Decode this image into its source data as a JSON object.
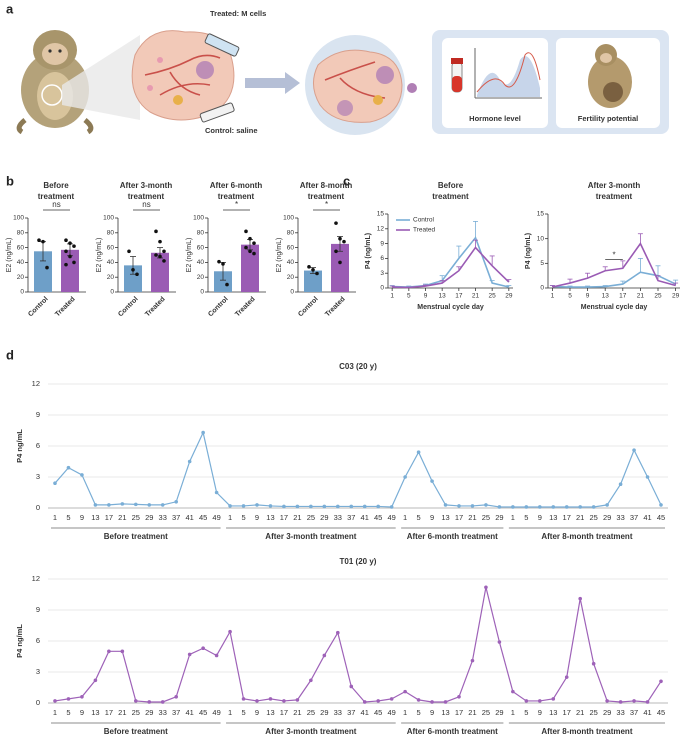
{
  "panel_labels": [
    "a",
    "b",
    "c",
    "d"
  ],
  "illustration": {
    "treated_label": "Treated: M cells",
    "control_label": "Control: saline",
    "hormone_label": "Hormone level",
    "fertility_label": "Fertility potential"
  },
  "chart_data": [
    {
      "type": "bar",
      "title": [
        "Before",
        "treatment"
      ],
      "ylabel": "E2 (ng/mL)",
      "categories": [
        "Control",
        "Treated"
      ],
      "values": [
        55,
        57
      ],
      "errors": [
        13,
        8
      ],
      "points": [
        [
          70,
          68,
          33
        ],
        [
          70,
          66,
          62,
          55,
          48,
          40,
          37
        ]
      ],
      "colors": [
        "#6e9fc8",
        "#9a5bb4"
      ],
      "ylim": [
        0,
        100
      ],
      "yticks": [
        0,
        20,
        40,
        60,
        80,
        100
      ],
      "significance": "ns"
    },
    {
      "type": "bar",
      "title": [
        "After 3-month",
        "treatment"
      ],
      "ylabel": "E2 (ng/mL)",
      "categories": [
        "Control",
        "Treated"
      ],
      "values": [
        36,
        53
      ],
      "errors": [
        12,
        7
      ],
      "points": [
        [
          55,
          30,
          24
        ],
        [
          82,
          68,
          55,
          50,
          48,
          42
        ]
      ],
      "colors": [
        "#6e9fc8",
        "#9a5bb4"
      ],
      "ylim": [
        0,
        100
      ],
      "yticks": [
        0,
        20,
        40,
        60,
        80,
        100
      ],
      "significance": "ns"
    },
    {
      "type": "bar",
      "title": [
        "After 6-month",
        "treatment"
      ],
      "ylabel": "E2 (ng/mL)",
      "categories": [
        "Control",
        "Treated"
      ],
      "values": [
        28,
        64
      ],
      "errors": [
        12,
        7
      ],
      "points": [
        [
          41,
          38,
          10
        ],
        [
          82,
          72,
          66,
          60,
          55,
          52
        ]
      ],
      "colors": [
        "#6e9fc8",
        "#9a5bb4"
      ],
      "ylim": [
        0,
        100
      ],
      "yticks": [
        0,
        20,
        40,
        60,
        80,
        100
      ],
      "significance": "*"
    },
    {
      "type": "bar",
      "title": [
        "After 8-month",
        "treatment"
      ],
      "ylabel": "E2 (ng/mL)",
      "categories": [
        "Control",
        "Treated"
      ],
      "values": [
        29,
        65
      ],
      "errors": [
        4,
        10
      ],
      "points": [
        [
          34,
          30,
          25
        ],
        [
          93,
          72,
          68,
          55,
          40
        ]
      ],
      "colors": [
        "#6e9fc8",
        "#9a5bb4"
      ],
      "ylim": [
        0,
        100
      ],
      "yticks": [
        0,
        20,
        40,
        60,
        80,
        100
      ],
      "significance": "*"
    },
    {
      "type": "line",
      "title": [
        "Before",
        "treatment"
      ],
      "xlabel": "Menstrual cycle day",
      "ylabel": "P4 (ng/mL)",
      "x": [
        1,
        5,
        9,
        13,
        17,
        21,
        25,
        29
      ],
      "xlim": [
        0,
        30
      ],
      "xticks": [
        1,
        5,
        9,
        13,
        17,
        21,
        25,
        29
      ],
      "ylim": [
        0,
        15
      ],
      "yticks": [
        0,
        3,
        6,
        9,
        12,
        15
      ],
      "legend": "upper left",
      "series": [
        {
          "name": "Control",
          "color": "#7aaed6",
          "values": [
            0.3,
            0.2,
            0.5,
            1.5,
            6,
            10.2,
            1,
            0.2
          ],
          "errors": [
            0.2,
            0.2,
            0.3,
            1,
            2.5,
            3.3,
            0.5,
            0.3
          ]
        },
        {
          "name": "Treated",
          "color": "#9a5bb4",
          "values": [
            0.2,
            0.1,
            0.4,
            1,
            3.5,
            8.2,
            4.5,
            1.2
          ],
          "errors": [
            0.2,
            0.1,
            0.2,
            0.5,
            0.8,
            1.5,
            2,
            0.5
          ]
        }
      ]
    },
    {
      "type": "line",
      "title": [
        "After 3-month",
        "treatment"
      ],
      "xlabel": "Menstrual cycle day",
      "ylabel": "P4 (ng/mL)",
      "x": [
        1,
        5,
        9,
        13,
        17,
        21,
        25,
        29
      ],
      "xlim": [
        0,
        30
      ],
      "xticks": [
        1,
        5,
        9,
        13,
        17,
        21,
        25,
        29
      ],
      "ylim": [
        0,
        15
      ],
      "yticks": [
        0,
        5,
        10,
        15
      ],
      "series": [
        {
          "name": "Control",
          "color": "#7aaed6",
          "values": [
            0.3,
            0.2,
            0.2,
            0.3,
            0.8,
            3.2,
            2.5,
            0.8
          ],
          "errors": [
            0.2,
            0.2,
            0.2,
            0.2,
            0.6,
            2.8,
            2,
            0.8
          ]
        },
        {
          "name": "Treated",
          "color": "#9a5bb4",
          "values": [
            0.2,
            1,
            2,
            3.5,
            4,
            9,
            1.5,
            0.5
          ],
          "errors": [
            0.3,
            0.8,
            1,
            0.8,
            1.5,
            2,
            1,
            0.5
          ]
        }
      ],
      "annotations": [
        {
          "text": "*",
          "x": [
            13,
            17
          ],
          "y": 5.8
        }
      ]
    },
    {
      "type": "segmented_line",
      "title": "C03 (20 y)",
      "ylabel": "P4 ng/mL",
      "color": "#7aaed6",
      "ylim": [
        0,
        12
      ],
      "yticks": [
        0,
        3,
        6,
        9,
        12
      ],
      "grid": true,
      "segments": [
        {
          "label": "Before treatment",
          "x": [
            1,
            5,
            9,
            13,
            17,
            21,
            25,
            29,
            33,
            37,
            41,
            45,
            49
          ],
          "values": [
            2.4,
            3.9,
            3.2,
            0.3,
            0.3,
            0.4,
            0.35,
            0.3,
            0.3,
            0.6,
            4.5,
            7.3,
            1.5
          ]
        },
        {
          "label": "After 3-month treatment",
          "x": [
            1,
            5,
            9,
            13,
            17,
            21,
            25,
            29,
            33,
            37,
            41,
            45,
            49
          ],
          "values": [
            0.2,
            0.2,
            0.3,
            0.2,
            0.15,
            0.15,
            0.15,
            0.15,
            0.15,
            0.15,
            0.15,
            0.15,
            0.1
          ]
        },
        {
          "label": "After 6-month treatment",
          "x": [
            1,
            5,
            9,
            13,
            17,
            21,
            25,
            29
          ],
          "values": [
            3,
            5.4,
            2.6,
            0.3,
            0.2,
            0.2,
            0.3,
            0.1
          ]
        },
        {
          "label": "After 8-month treatment",
          "x": [
            1,
            5,
            9,
            13,
            17,
            21,
            25,
            29,
            33,
            37,
            41,
            45
          ],
          "values": [
            0.1,
            0.1,
            0.1,
            0.1,
            0.1,
            0.1,
            0.1,
            0.3,
            2.3,
            5.6,
            3,
            0.3
          ]
        }
      ]
    },
    {
      "type": "segmented_line",
      "title": "T01 (20 y)",
      "ylabel": "P4 ng/mL",
      "color": "#9e62b8",
      "ylim": [
        0,
        12
      ],
      "yticks": [
        0,
        3,
        6,
        9,
        12
      ],
      "grid": true,
      "segments": [
        {
          "label": "Before treatment",
          "x": [
            1,
            5,
            9,
            13,
            17,
            21,
            25,
            29,
            33,
            37,
            41,
            45,
            49
          ],
          "values": [
            0.2,
            0.4,
            0.6,
            2.2,
            5,
            5,
            0.2,
            0.1,
            0.1,
            0.6,
            4.7,
            5.3,
            4.6
          ]
        },
        {
          "label": "After 3-month treatment",
          "x": [
            1,
            5,
            9,
            13,
            17,
            21,
            25,
            29,
            33,
            37,
            41,
            45,
            49
          ],
          "values": [
            6.9,
            0.4,
            0.2,
            0.4,
            0.2,
            0.3,
            2.2,
            4.6,
            6.8,
            1.6,
            0.1,
            0.2,
            0.4
          ]
        },
        {
          "label": "After 6-month treatment",
          "x": [
            1,
            5,
            9,
            13,
            17,
            21,
            25,
            29
          ],
          "values": [
            1.1,
            0.3,
            0.1,
            0.1,
            0.6,
            4.1,
            11.2,
            5.9
          ]
        },
        {
          "label": "After 8-month treatment",
          "x": [
            1,
            5,
            9,
            13,
            17,
            21,
            25,
            29,
            33,
            37,
            41,
            45
          ],
          "values": [
            1.1,
            0.2,
            0.2,
            0.4,
            2.5,
            10.1,
            3.8,
            0.2,
            0.1,
            0.2,
            0.1,
            2.1
          ]
        }
      ]
    }
  ]
}
